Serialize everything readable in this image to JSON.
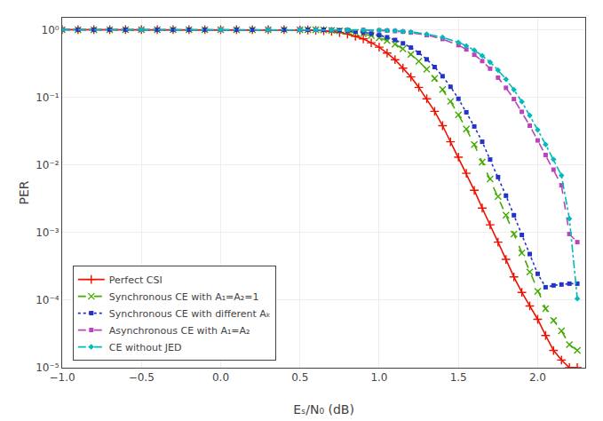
{
  "chart_data": {
    "type": "line",
    "xlabel": "Eₛ/N₀ (dB)",
    "ylabel": "PER",
    "xlim": [
      -1,
      2.3
    ],
    "ylim": [
      1e-05,
      1.5
    ],
    "log": "y",
    "grid": true,
    "legend": "lower left",
    "xticks": [
      {
        "value": -1,
        "label": "−1.0"
      },
      {
        "value": -0.5,
        "label": "−0.5"
      },
      {
        "value": 0,
        "label": "0.0"
      },
      0.5,
      {
        "value": 1,
        "label": "1.0"
      },
      1.5,
      {
        "value": 2,
        "label": "2.0"
      }
    ],
    "yticks": [
      {
        "value": 1e-05,
        "label": "10⁻⁵"
      },
      {
        "value": 0.0001,
        "label": "10⁻⁴"
      },
      {
        "value": 0.001,
        "label": "10⁻³"
      },
      {
        "value": 0.01,
        "label": "10⁻²"
      },
      {
        "value": 0.1,
        "label": "10⁻¹"
      },
      {
        "value": 1,
        "label": "10⁰"
      }
    ],
    "series": [
      {
        "name": "Perfect CSI",
        "color": "#ee1100",
        "marker": "plus",
        "line_style": "solid",
        "x": [
          -1.0,
          -0.9,
          -0.8,
          -0.7,
          -0.6,
          -0.5,
          -0.4,
          -0.3,
          -0.2,
          -0.1,
          0.0,
          0.1,
          0.2,
          0.3,
          0.4,
          0.5,
          0.55,
          0.6,
          0.65,
          0.7,
          0.75,
          0.8,
          0.85,
          0.9,
          0.95,
          1.0,
          1.05,
          1.1,
          1.15,
          1.2,
          1.25,
          1.3,
          1.35,
          1.4,
          1.45,
          1.5,
          1.55,
          1.6,
          1.65,
          1.7,
          1.75,
          1.8,
          1.85,
          1.9,
          1.95,
          2.0,
          2.05,
          2.1,
          2.15,
          2.2,
          2.25
        ],
        "values": [
          1.0,
          1.0,
          1.0,
          1.0,
          1.0,
          1.0,
          1.0,
          1.0,
          1.0,
          1.0,
          1.0,
          1.0,
          1.0,
          0.999,
          0.999,
          0.995,
          0.99,
          0.98,
          0.965,
          0.94,
          0.91,
          0.86,
          0.8,
          0.73,
          0.64,
          0.55,
          0.45,
          0.36,
          0.27,
          0.2,
          0.14,
          0.095,
          0.062,
          0.038,
          0.022,
          0.013,
          0.0075,
          0.0042,
          0.0023,
          0.0013,
          0.00072,
          0.0004,
          0.00022,
          0.00013,
          8.2e-05,
          5.2e-05,
          3e-05,
          1.8e-05,
          1.3e-05,
          1e-05,
          1e-05
        ]
      },
      {
        "name": "Synchronous CE with A₁=A₂=1",
        "color": "#44aa00",
        "marker": "x",
        "line_style": "dashed",
        "x": [
          -1.0,
          -0.9,
          -0.8,
          -0.7,
          -0.6,
          -0.5,
          -0.4,
          -0.3,
          -0.2,
          -0.1,
          0.0,
          0.1,
          0.2,
          0.3,
          0.4,
          0.5,
          0.55,
          0.6,
          0.65,
          0.7,
          0.75,
          0.8,
          0.85,
          0.9,
          0.95,
          1.0,
          1.05,
          1.1,
          1.15,
          1.2,
          1.25,
          1.3,
          1.35,
          1.4,
          1.45,
          1.5,
          1.55,
          1.6,
          1.65,
          1.7,
          1.75,
          1.8,
          1.85,
          1.9,
          1.95,
          2.0,
          2.05,
          2.1,
          2.15,
          2.2,
          2.25
        ],
        "values": [
          1.0,
          1.0,
          1.0,
          1.0,
          1.0,
          1.0,
          1.0,
          1.0,
          1.0,
          1.0,
          1.0,
          1.0,
          1.0,
          1.0,
          1.0,
          0.999,
          0.997,
          0.994,
          0.988,
          0.978,
          0.962,
          0.94,
          0.91,
          0.87,
          0.82,
          0.76,
          0.69,
          0.61,
          0.52,
          0.43,
          0.34,
          0.26,
          0.19,
          0.13,
          0.087,
          0.055,
          0.034,
          0.02,
          0.011,
          0.0062,
          0.0034,
          0.0018,
          0.00095,
          0.0005,
          0.00026,
          0.000135,
          7.5e-05,
          5e-05,
          3.5e-05,
          2.2e-05,
          1.8e-05
        ]
      },
      {
        "name": "Synchronous CE with different Aₖ",
        "color": "#2233cc",
        "marker": "square",
        "line_style": "dotted",
        "x": [
          -1.0,
          -0.9,
          -0.8,
          -0.7,
          -0.6,
          -0.5,
          -0.4,
          -0.3,
          -0.2,
          -0.1,
          0.0,
          0.1,
          0.2,
          0.3,
          0.4,
          0.5,
          0.55,
          0.6,
          0.65,
          0.7,
          0.75,
          0.8,
          0.85,
          0.9,
          0.95,
          1.0,
          1.05,
          1.1,
          1.15,
          1.2,
          1.25,
          1.3,
          1.35,
          1.4,
          1.45,
          1.5,
          1.55,
          1.6,
          1.65,
          1.7,
          1.75,
          1.8,
          1.85,
          1.9,
          1.95,
          2.0,
          2.05,
          2.1,
          2.15,
          2.2,
          2.25
        ],
        "values": [
          1.0,
          1.0,
          1.0,
          1.0,
          1.0,
          1.0,
          1.0,
          1.0,
          1.0,
          1.0,
          1.0,
          1.0,
          1.0,
          1.0,
          1.0,
          1.0,
          0.999,
          0.997,
          0.994,
          0.988,
          0.978,
          0.963,
          0.942,
          0.913,
          0.876,
          0.829,
          0.772,
          0.705,
          0.628,
          0.543,
          0.454,
          0.364,
          0.28,
          0.205,
          0.143,
          0.095,
          0.06,
          0.037,
          0.022,
          0.012,
          0.0066,
          0.0035,
          0.0018,
          0.00092,
          0.00048,
          0.000245,
          0.000155,
          0.000165,
          0.00017,
          0.000175,
          0.000175
        ]
      },
      {
        "name": "Asynchronous CE with A₁=A₂",
        "color": "#bb44bb",
        "marker": "square",
        "line_style": "dashed",
        "x": [
          -1.0,
          -0.5,
          0.0,
          0.3,
          0.5,
          0.6,
          0.7,
          0.8,
          0.9,
          1.0,
          1.05,
          1.1,
          1.15,
          1.2,
          1.3,
          1.4,
          1.5,
          1.55,
          1.6,
          1.65,
          1.7,
          1.75,
          1.8,
          1.85,
          1.9,
          1.95,
          2.0,
          2.05,
          2.1,
          2.15,
          2.2,
          2.25
        ],
        "values": [
          1.0,
          1.0,
          1.0,
          1.0,
          1.0,
          0.999,
          0.997,
          0.994,
          0.988,
          0.977,
          0.968,
          0.954,
          0.934,
          0.907,
          0.83,
          0.727,
          0.59,
          0.51,
          0.425,
          0.343,
          0.265,
          0.195,
          0.138,
          0.094,
          0.061,
          0.038,
          0.023,
          0.014,
          0.0085,
          0.005,
          0.00095,
          0.00072
        ]
      },
      {
        "name": "CE without JED",
        "color": "#00bbbb",
        "marker": "diamond",
        "line_style": "dashdot",
        "x": [
          -1.0,
          -0.5,
          0.0,
          0.3,
          0.5,
          0.6,
          0.7,
          0.8,
          0.9,
          1.0,
          1.05,
          1.1,
          1.15,
          1.2,
          1.3,
          1.4,
          1.5,
          1.55,
          1.6,
          1.65,
          1.7,
          1.75,
          1.8,
          1.85,
          1.9,
          1.95,
          2.0,
          2.05,
          2.1,
          2.15,
          2.2,
          2.25
        ],
        "values": [
          1.0,
          1.0,
          1.0,
          1.0,
          1.0,
          1.0,
          0.999,
          0.997,
          0.993,
          0.985,
          0.977,
          0.965,
          0.948,
          0.925,
          0.86,
          0.77,
          0.65,
          0.576,
          0.496,
          0.413,
          0.33,
          0.252,
          0.184,
          0.129,
          0.086,
          0.054,
          0.033,
          0.02,
          0.012,
          0.007,
          0.0016,
          0.000105
        ]
      }
    ]
  }
}
